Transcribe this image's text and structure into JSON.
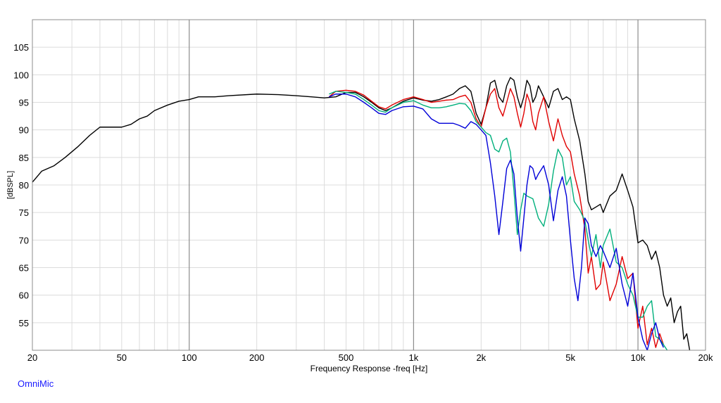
{
  "chart_data": {
    "type": "line",
    "xlabel": "Frequency Response -freq [Hz]",
    "ylabel": "[dBSPL]",
    "xscale": "log",
    "xlim": [
      20,
      20000
    ],
    "ylim": [
      50,
      110
    ],
    "grid": true,
    "x_ticks": [
      {
        "value": 20,
        "label": "20"
      },
      {
        "value": 50,
        "label": "50"
      },
      {
        "value": 100,
        "label": "100"
      },
      {
        "value": 200,
        "label": "200"
      },
      {
        "value": 500,
        "label": "500"
      },
      {
        "value": 1000,
        "label": "1k"
      },
      {
        "value": 2000,
        "label": "2k"
      },
      {
        "value": 5000,
        "label": "5k"
      },
      {
        "value": 10000,
        "label": "10k"
      },
      {
        "value": 20000,
        "label": "20k"
      }
    ],
    "y_ticks": [
      {
        "value": 55,
        "label": "55"
      },
      {
        "value": 60,
        "label": "60"
      },
      {
        "value": 65,
        "label": "65"
      },
      {
        "value": 70,
        "label": "70"
      },
      {
        "value": 75,
        "label": "75"
      },
      {
        "value": 80,
        "label": "80"
      },
      {
        "value": 85,
        "label": "85"
      },
      {
        "value": 90,
        "label": "90"
      },
      {
        "value": 95,
        "label": "95"
      },
      {
        "value": 100,
        "label": "100"
      },
      {
        "value": 105,
        "label": "105"
      }
    ],
    "series": [
      {
        "color": "#000000",
        "points": [
          [
            20,
            80.5
          ],
          [
            22,
            82.5
          ],
          [
            25,
            83.5
          ],
          [
            28,
            85
          ],
          [
            32,
            87
          ],
          [
            36,
            89
          ],
          [
            40,
            90.5
          ],
          [
            45,
            90.5
          ],
          [
            50,
            90.5
          ],
          [
            55,
            91
          ],
          [
            60,
            92
          ],
          [
            65,
            92.5
          ],
          [
            70,
            93.5
          ],
          [
            80,
            94.5
          ],
          [
            90,
            95.2
          ],
          [
            100,
            95.5
          ],
          [
            110,
            96
          ],
          [
            130,
            96
          ],
          [
            150,
            96.2
          ],
          [
            200,
            96.5
          ],
          [
            250,
            96.4
          ],
          [
            300,
            96.2
          ],
          [
            350,
            96
          ],
          [
            400,
            95.8
          ],
          [
            450,
            96
          ],
          [
            500,
            96.8
          ],
          [
            550,
            96.8
          ],
          [
            600,
            96
          ],
          [
            650,
            95
          ],
          [
            700,
            94
          ],
          [
            750,
            93.5
          ],
          [
            800,
            94
          ],
          [
            900,
            95.2
          ],
          [
            1000,
            95.8
          ],
          [
            1100,
            95.4
          ],
          [
            1200,
            95.2
          ],
          [
            1300,
            95.5
          ],
          [
            1400,
            96
          ],
          [
            1500,
            96.5
          ],
          [
            1600,
            97.5
          ],
          [
            1700,
            98
          ],
          [
            1800,
            97
          ],
          [
            1900,
            93
          ],
          [
            2000,
            91
          ],
          [
            2100,
            94
          ],
          [
            2200,
            98.5
          ],
          [
            2300,
            99
          ],
          [
            2400,
            96
          ],
          [
            2500,
            95
          ],
          [
            2600,
            98
          ],
          [
            2700,
            99.5
          ],
          [
            2800,
            99
          ],
          [
            2900,
            96
          ],
          [
            3000,
            94
          ],
          [
            3100,
            96
          ],
          [
            3200,
            99
          ],
          [
            3300,
            98
          ],
          [
            3400,
            95
          ],
          [
            3500,
            96
          ],
          [
            3600,
            98
          ],
          [
            3800,
            96
          ],
          [
            4000,
            94
          ],
          [
            4200,
            97
          ],
          [
            4400,
            97.5
          ],
          [
            4600,
            95.5
          ],
          [
            4800,
            96
          ],
          [
            5000,
            95.5
          ],
          [
            5200,
            92
          ],
          [
            5500,
            88
          ],
          [
            5800,
            82
          ],
          [
            6000,
            77
          ],
          [
            6200,
            75.5
          ],
          [
            6500,
            76
          ],
          [
            6800,
            76.5
          ],
          [
            7000,
            75
          ],
          [
            7500,
            78
          ],
          [
            8000,
            79
          ],
          [
            8500,
            82
          ],
          [
            9000,
            79
          ],
          [
            9500,
            76
          ],
          [
            10000,
            69.5
          ],
          [
            10500,
            70
          ],
          [
            11000,
            69
          ],
          [
            11500,
            66.5
          ],
          [
            12000,
            68
          ],
          [
            12500,
            65
          ],
          [
            13000,
            60
          ],
          [
            13500,
            58
          ],
          [
            14000,
            59.5
          ],
          [
            14500,
            55
          ],
          [
            15000,
            57
          ],
          [
            15500,
            58
          ],
          [
            16000,
            52
          ],
          [
            16500,
            53
          ],
          [
            17000,
            50
          ]
        ]
      },
      {
        "color": "#e00000",
        "points": [
          [
            420,
            96
          ],
          [
            450,
            97
          ],
          [
            500,
            97.2
          ],
          [
            550,
            97
          ],
          [
            600,
            96.3
          ],
          [
            650,
            95.2
          ],
          [
            700,
            94.2
          ],
          [
            750,
            93.8
          ],
          [
            800,
            94.5
          ],
          [
            900,
            95.5
          ],
          [
            1000,
            96
          ],
          [
            1100,
            95.5
          ],
          [
            1200,
            95
          ],
          [
            1300,
            95.2
          ],
          [
            1400,
            95.4
          ],
          [
            1500,
            95.5
          ],
          [
            1600,
            96
          ],
          [
            1700,
            96.3
          ],
          [
            1800,
            95
          ],
          [
            1900,
            92
          ],
          [
            2000,
            90.5
          ],
          [
            2100,
            94
          ],
          [
            2200,
            96.5
          ],
          [
            2300,
            97.5
          ],
          [
            2400,
            94
          ],
          [
            2500,
            92.5
          ],
          [
            2600,
            95
          ],
          [
            2700,
            97.5
          ],
          [
            2800,
            96
          ],
          [
            2900,
            93
          ],
          [
            3000,
            90.5
          ],
          [
            3100,
            93
          ],
          [
            3200,
            96.5
          ],
          [
            3300,
            95
          ],
          [
            3400,
            91.5
          ],
          [
            3500,
            90
          ],
          [
            3600,
            93
          ],
          [
            3800,
            96
          ],
          [
            4000,
            91.5
          ],
          [
            4200,
            88
          ],
          [
            4400,
            92
          ],
          [
            4600,
            89
          ],
          [
            4800,
            87
          ],
          [
            5000,
            86
          ],
          [
            5200,
            82
          ],
          [
            5500,
            78
          ],
          [
            5800,
            72
          ],
          [
            6000,
            64
          ],
          [
            6200,
            67
          ],
          [
            6500,
            61
          ],
          [
            6800,
            62
          ],
          [
            7000,
            66
          ],
          [
            7500,
            59
          ],
          [
            8000,
            62
          ],
          [
            8500,
            67
          ],
          [
            9000,
            63
          ],
          [
            9500,
            64
          ],
          [
            10000,
            54
          ],
          [
            10500,
            58
          ],
          [
            11000,
            51
          ],
          [
            11500,
            54
          ],
          [
            12000,
            50.5
          ],
          [
            12500,
            53
          ],
          [
            13000,
            51
          ]
        ]
      },
      {
        "color": "#00b07c",
        "points": [
          [
            420,
            96.5
          ],
          [
            450,
            97
          ],
          [
            500,
            96.8
          ],
          [
            550,
            96.5
          ],
          [
            600,
            95.5
          ],
          [
            650,
            94.5
          ],
          [
            700,
            93.5
          ],
          [
            750,
            93.2
          ],
          [
            800,
            94
          ],
          [
            900,
            95
          ],
          [
            1000,
            95.3
          ],
          [
            1100,
            94.5
          ],
          [
            1200,
            94
          ],
          [
            1300,
            94
          ],
          [
            1400,
            94.2
          ],
          [
            1500,
            94.5
          ],
          [
            1600,
            94.8
          ],
          [
            1700,
            94.7
          ],
          [
            1800,
            93.5
          ],
          [
            1900,
            91.5
          ],
          [
            2000,
            90.5
          ],
          [
            2100,
            89.5
          ],
          [
            2200,
            89
          ],
          [
            2300,
            86.5
          ],
          [
            2400,
            86
          ],
          [
            2500,
            88
          ],
          [
            2600,
            88.5
          ],
          [
            2700,
            86
          ],
          [
            2800,
            79
          ],
          [
            2900,
            71
          ],
          [
            3000,
            75.5
          ],
          [
            3100,
            78.5
          ],
          [
            3200,
            78
          ],
          [
            3400,
            77.5
          ],
          [
            3600,
            74
          ],
          [
            3800,
            72.5
          ],
          [
            4000,
            76.5
          ],
          [
            4200,
            82.5
          ],
          [
            4400,
            86.5
          ],
          [
            4600,
            85
          ],
          [
            4800,
            80
          ],
          [
            5000,
            81.5
          ],
          [
            5200,
            77
          ],
          [
            5500,
            75.5
          ],
          [
            5800,
            73.5
          ],
          [
            6000,
            70
          ],
          [
            6200,
            67
          ],
          [
            6500,
            71
          ],
          [
            6800,
            65
          ],
          [
            7000,
            69
          ],
          [
            7500,
            72
          ],
          [
            8000,
            66
          ],
          [
            8500,
            65
          ],
          [
            9000,
            62
          ],
          [
            9500,
            60
          ],
          [
            10000,
            56
          ],
          [
            10500,
            56
          ],
          [
            11000,
            58
          ],
          [
            11500,
            59
          ],
          [
            12000,
            52.5
          ],
          [
            12500,
            52
          ],
          [
            13000,
            51
          ],
          [
            13500,
            50
          ]
        ]
      },
      {
        "color": "#0000d8",
        "points": [
          [
            420,
            96
          ],
          [
            450,
            96.5
          ],
          [
            500,
            96.5
          ],
          [
            550,
            96
          ],
          [
            600,
            95
          ],
          [
            650,
            94
          ],
          [
            700,
            93
          ],
          [
            750,
            92.8
          ],
          [
            800,
            93.5
          ],
          [
            900,
            94.2
          ],
          [
            1000,
            94.3
          ],
          [
            1100,
            93.8
          ],
          [
            1200,
            92
          ],
          [
            1300,
            91.2
          ],
          [
            1400,
            91.2
          ],
          [
            1500,
            91.2
          ],
          [
            1600,
            90.8
          ],
          [
            1700,
            90.3
          ],
          [
            1800,
            91.5
          ],
          [
            1900,
            91
          ],
          [
            2000,
            90
          ],
          [
            2100,
            89
          ],
          [
            2200,
            84
          ],
          [
            2300,
            78
          ],
          [
            2400,
            71
          ],
          [
            2500,
            77
          ],
          [
            2600,
            83
          ],
          [
            2700,
            84.5
          ],
          [
            2800,
            82
          ],
          [
            2900,
            74
          ],
          [
            3000,
            68
          ],
          [
            3100,
            74
          ],
          [
            3200,
            80
          ],
          [
            3300,
            83.5
          ],
          [
            3400,
            83
          ],
          [
            3500,
            81
          ],
          [
            3600,
            82
          ],
          [
            3800,
            83.5
          ],
          [
            4000,
            80
          ],
          [
            4200,
            73.5
          ],
          [
            4400,
            79
          ],
          [
            4600,
            81.5
          ],
          [
            4800,
            78
          ],
          [
            5000,
            70
          ],
          [
            5200,
            63
          ],
          [
            5400,
            59
          ],
          [
            5600,
            65
          ],
          [
            5800,
            74
          ],
          [
            6000,
            73
          ],
          [
            6200,
            69
          ],
          [
            6500,
            67
          ],
          [
            6800,
            69
          ],
          [
            7000,
            68
          ],
          [
            7500,
            65
          ],
          [
            8000,
            68.5
          ],
          [
            8500,
            62
          ],
          [
            9000,
            58
          ],
          [
            9500,
            64
          ],
          [
            10000,
            56
          ],
          [
            10500,
            52
          ],
          [
            11000,
            50
          ],
          [
            11500,
            53
          ],
          [
            12000,
            55
          ],
          [
            12500,
            52
          ],
          [
            13000,
            50.5
          ]
        ]
      }
    ]
  },
  "brand": {
    "text": "OmniMic",
    "color": "#1a1aff"
  }
}
